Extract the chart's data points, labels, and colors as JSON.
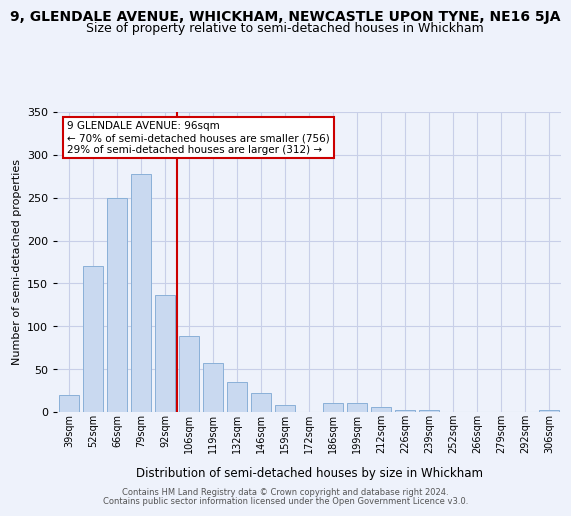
{
  "title": "9, GLENDALE AVENUE, WHICKHAM, NEWCASTLE UPON TYNE, NE16 5JA",
  "subtitle": "Size of property relative to semi-detached houses in Whickham",
  "xlabel": "Distribution of semi-detached houses by size in Whickham",
  "ylabel": "Number of semi-detached properties",
  "categories": [
    "39sqm",
    "52sqm",
    "66sqm",
    "79sqm",
    "92sqm",
    "106sqm",
    "119sqm",
    "132sqm",
    "146sqm",
    "159sqm",
    "172sqm",
    "186sqm",
    "199sqm",
    "212sqm",
    "226sqm",
    "239sqm",
    "252sqm",
    "266sqm",
    "279sqm",
    "292sqm",
    "306sqm"
  ],
  "values": [
    20,
    170,
    250,
    278,
    137,
    89,
    57,
    35,
    22,
    8,
    0,
    10,
    10,
    6,
    2,
    2,
    0,
    0,
    0,
    0,
    2
  ],
  "bar_color": "#c9d9f0",
  "bar_edge_color": "#8ab0d8",
  "marker_line_color": "#cc0000",
  "annotation_title": "9 GLENDALE AVENUE: 96sqm",
  "annotation_line1": "← 70% of semi-detached houses are smaller (756)",
  "annotation_line2": "29% of semi-detached houses are larger (312) →",
  "annotation_box_color": "#cc0000",
  "ylim": [
    0,
    350
  ],
  "yticks": [
    0,
    50,
    100,
    150,
    200,
    250,
    300,
    350
  ],
  "footer1": "Contains HM Land Registry data © Crown copyright and database right 2024.",
  "footer2": "Contains public sector information licensed under the Open Government Licence v3.0.",
  "bg_color": "#eef2fb",
  "grid_color": "#c8cfe8",
  "title_fontsize": 10,
  "subtitle_fontsize": 9,
  "marker_bar_index": 4
}
